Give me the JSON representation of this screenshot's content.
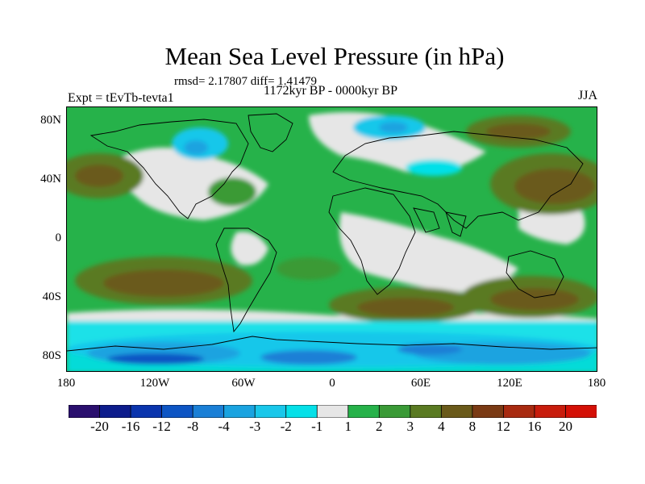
{
  "title": "Mean Sea Level Pressure (in hPa)",
  "stats": "rmsd= 2.17807 diff= 1.41479",
  "period": "1172kyr BP - 0000kyr BP",
  "expt": "Expt = tEvTb-tevta1",
  "season": "JJA",
  "lat_labels": [
    "80N",
    "40N",
    "0",
    "40S",
    "80S"
  ],
  "lon_labels": [
    "180",
    "120W",
    "60W",
    "0",
    "60E",
    "120E",
    "180"
  ],
  "colorbar": {
    "colors": [
      "#2a0f6e",
      "#0d1c8c",
      "#0a34ad",
      "#0d55c4",
      "#1a7fd6",
      "#1aa3e0",
      "#19c7ea",
      "#05e0e8",
      "#e6e6e6",
      "#26b24a",
      "#3a9a36",
      "#5a7a22",
      "#6a5a1a",
      "#7a3a14",
      "#a82a10",
      "#c81c0c",
      "#d41006"
    ],
    "labels": [
      "-20",
      "-16",
      "-12",
      "-8",
      "-4",
      "-3",
      "-2",
      "-1",
      "1",
      "2",
      "3",
      "4",
      "8",
      "12",
      "16",
      "20"
    ]
  }
}
